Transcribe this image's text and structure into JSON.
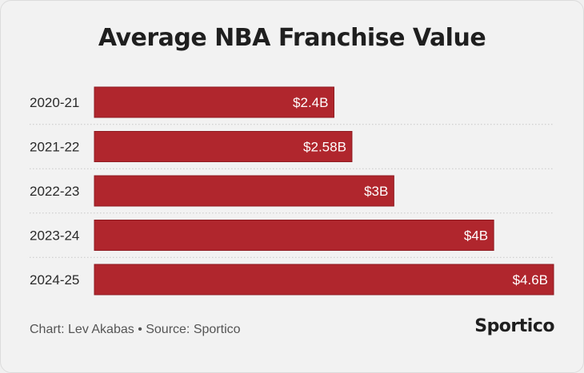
{
  "chart_data": {
    "type": "bar",
    "orientation": "horizontal",
    "title": "Average NBA Franchise Value",
    "categories": [
      "2020-21",
      "2021-22",
      "2022-23",
      "2023-24",
      "2024-25"
    ],
    "values": [
      2.4,
      2.58,
      3,
      4,
      4.6
    ],
    "value_labels": [
      "$2.4B",
      "$2.58B",
      "$3B",
      "$4B",
      "$4.6B"
    ],
    "xlim": [
      0,
      4.6
    ],
    "grid": "dotted separators between rows",
    "bar_color": "#b0262d"
  },
  "footer": {
    "note": "Chart: Lev Akabas • Source: Sportico",
    "logo": "Sportico"
  }
}
